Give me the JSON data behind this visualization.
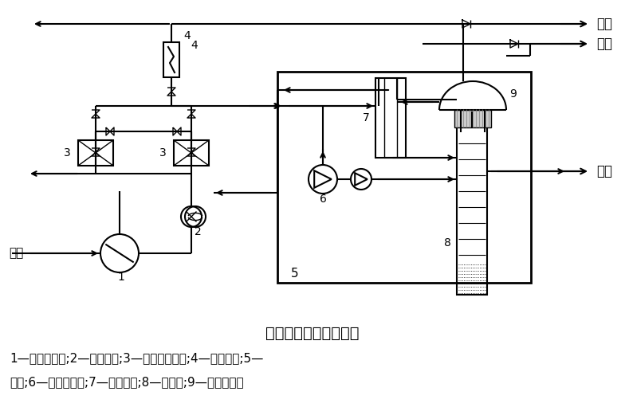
{
  "title": "深冷分离制氮工艺流程",
  "legend_line1": "1—空气压缩机;2—预冷机组;3—分子筛吸附器;4—电加热器;5—",
  "legend_line2": "冷箱;6—透平膨胀机;7—主换热器;8—精馏塔;9—冷凝蒸发器",
  "label_kongqi": "空气",
  "label_fangkong": "放空",
  "label_dan": "氮气",
  "label_yedan": "液氮",
  "bg_color": "#ffffff",
  "line_color": "#000000",
  "figsize": [
    7.84,
    5.16
  ],
  "dpi": 100
}
